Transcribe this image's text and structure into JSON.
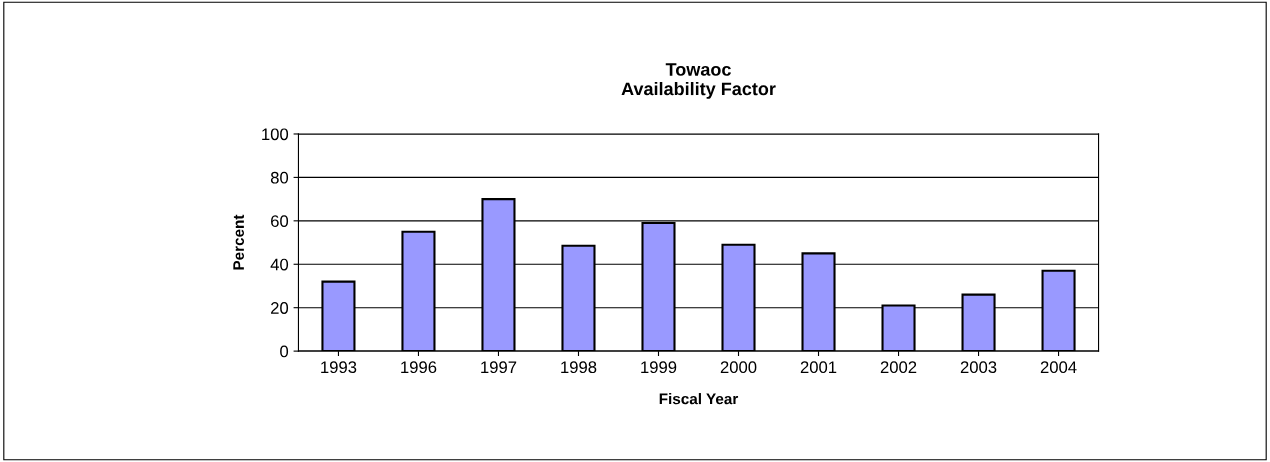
{
  "chart_data": {
    "type": "bar",
    "title": "Towaoc\nAvailability Factor",
    "xlabel": "Fiscal Year",
    "ylabel": "Percent",
    "categories": [
      "1993",
      "1996",
      "1997",
      "1998",
      "1999",
      "2000",
      "2001",
      "2002",
      "2003",
      "2004"
    ],
    "values": [
      32,
      55,
      70,
      48.5,
      59,
      49,
      45,
      21,
      26,
      37
    ],
    "color": "#9999ff",
    "ylim": [
      0,
      100
    ],
    "yticks": [
      0,
      20,
      40,
      60,
      80,
      100
    ],
    "grid": "y",
    "legend": false
  }
}
